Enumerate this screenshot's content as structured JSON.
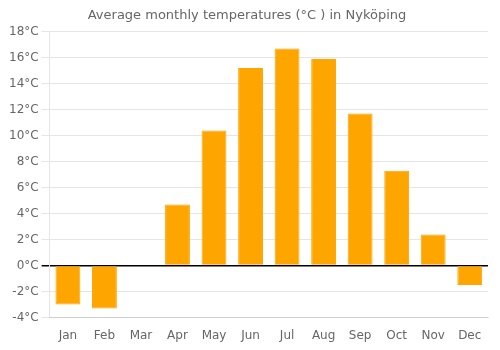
{
  "chart_data": {
    "type": "bar",
    "title": "Average monthly temperatures (°C ) in Nyköping",
    "categories": [
      "Jan",
      "Feb",
      "Mar",
      "Apr",
      "May",
      "Jun",
      "Jul",
      "Aug",
      "Sep",
      "Oct",
      "Nov",
      "Dec"
    ],
    "values": [
      -3.0,
      -3.3,
      0.0,
      4.7,
      10.4,
      15.2,
      16.7,
      15.9,
      11.7,
      7.3,
      2.4,
      -1.5
    ],
    "color": "#FFA500",
    "ylim": [
      -4,
      18
    ],
    "yticks": [
      {
        "value": -4,
        "label": "-4°C"
      },
      {
        "value": -2,
        "label": "-2°C"
      },
      {
        "value": 0,
        "label": "0°C"
      },
      {
        "value": 2,
        "label": "2°C"
      },
      {
        "value": 4,
        "label": "4°C"
      },
      {
        "value": 6,
        "label": "6°C"
      },
      {
        "value": 8,
        "label": "8°C"
      },
      {
        "value": 10,
        "label": "10°C"
      },
      {
        "value": 12,
        "label": "12°C"
      },
      {
        "value": 14,
        "label": "14°C"
      },
      {
        "value": 16,
        "label": "16°C"
      },
      {
        "value": 18,
        "label": "18°C"
      }
    ],
    "grid": "y"
  }
}
